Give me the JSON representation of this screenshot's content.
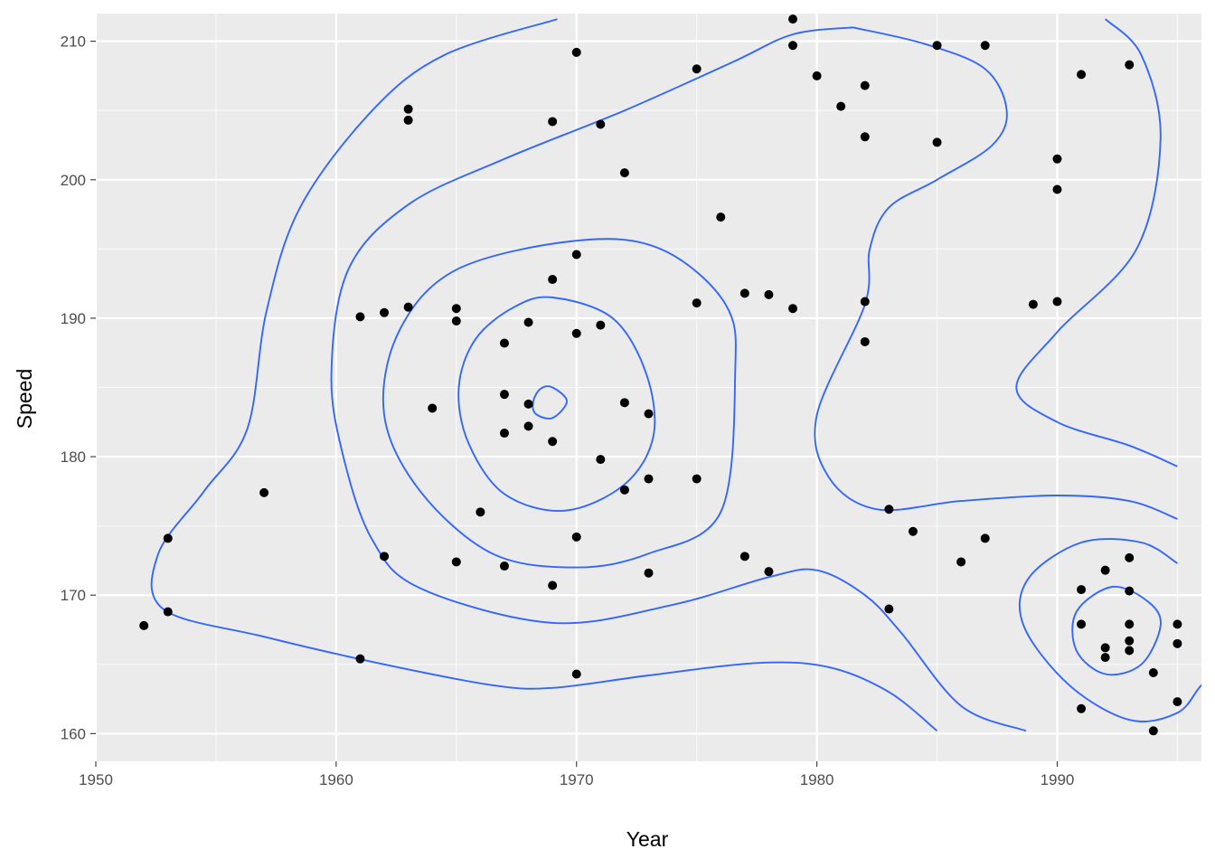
{
  "chart_data": {
    "type": "scatter",
    "title": "",
    "xlabel": "Year",
    "ylabel": "Speed",
    "xlim": [
      1950,
      1996
    ],
    "ylim": [
      158,
      212
    ],
    "x_ticks": [
      1950,
      1960,
      1970,
      1980,
      1990
    ],
    "y_ticks": [
      160,
      170,
      180,
      190,
      200,
      210
    ],
    "x_minor": [
      1955,
      1965,
      1975,
      1985,
      1995
    ],
    "y_minor": [
      165,
      175,
      185,
      195,
      205
    ],
    "grid": true,
    "legend": "none",
    "colors": {
      "panel": "#ebebeb",
      "grid": "#ffffff",
      "points": "#000000",
      "contours": "#3366ff",
      "tick_text": "#4d4d4d",
      "axis_text": "#000000"
    },
    "points": [
      [
        1952,
        167.8
      ],
      [
        1953,
        174.1
      ],
      [
        1953,
        168.8
      ],
      [
        1957,
        177.4
      ],
      [
        1961,
        190.1
      ],
      [
        1961,
        165.4
      ],
      [
        1962,
        190.4
      ],
      [
        1962,
        172.8
      ],
      [
        1963,
        190.8
      ],
      [
        1963,
        205.1
      ],
      [
        1963,
        204.3
      ],
      [
        1964,
        183.5
      ],
      [
        1965,
        190.7
      ],
      [
        1965,
        189.8
      ],
      [
        1965,
        172.4
      ],
      [
        1966,
        176.0
      ],
      [
        1967,
        188.2
      ],
      [
        1967,
        184.5
      ],
      [
        1967,
        181.7
      ],
      [
        1967,
        172.1
      ],
      [
        1968,
        189.7
      ],
      [
        1968,
        183.8
      ],
      [
        1968,
        182.2
      ],
      [
        1969,
        204.2
      ],
      [
        1969,
        192.8
      ],
      [
        1969,
        181.1
      ],
      [
        1969,
        170.7
      ],
      [
        1970,
        209.2
      ],
      [
        1970,
        194.6
      ],
      [
        1970,
        188.9
      ],
      [
        1970,
        174.2
      ],
      [
        1970,
        164.3
      ],
      [
        1971,
        204.0
      ],
      [
        1971,
        189.5
      ],
      [
        1971,
        179.8
      ],
      [
        1972,
        200.5
      ],
      [
        1972,
        183.9
      ],
      [
        1972,
        177.6
      ],
      [
        1973,
        183.1
      ],
      [
        1973,
        178.4
      ],
      [
        1973,
        171.6
      ],
      [
        1975,
        208.0
      ],
      [
        1975,
        191.1
      ],
      [
        1975,
        178.4
      ],
      [
        1976,
        197.3
      ],
      [
        1977,
        191.8
      ],
      [
        1977,
        172.8
      ],
      [
        1978,
        191.7
      ],
      [
        1978,
        171.7
      ],
      [
        1979,
        211.6
      ],
      [
        1979,
        209.7
      ],
      [
        1979,
        190.7
      ],
      [
        1980,
        207.5
      ],
      [
        1981,
        205.3
      ],
      [
        1982,
        206.8
      ],
      [
        1982,
        203.1
      ],
      [
        1982,
        191.2
      ],
      [
        1982,
        188.3
      ],
      [
        1983,
        176.2
      ],
      [
        1983,
        169.0
      ],
      [
        1984,
        174.6
      ],
      [
        1985,
        209.7
      ],
      [
        1985,
        202.7
      ],
      [
        1986,
        172.4
      ],
      [
        1987,
        209.7
      ],
      [
        1987,
        174.1
      ],
      [
        1989,
        191.0
      ],
      [
        1990,
        201.5
      ],
      [
        1990,
        199.3
      ],
      [
        1990,
        191.2
      ],
      [
        1991,
        207.6
      ],
      [
        1991,
        170.4
      ],
      [
        1991,
        167.9
      ],
      [
        1991,
        161.8
      ],
      [
        1992,
        171.8
      ],
      [
        1992,
        166.2
      ],
      [
        1992,
        165.5
      ],
      [
        1993,
        208.3
      ],
      [
        1993,
        172.7
      ],
      [
        1993,
        170.3
      ],
      [
        1993,
        167.9
      ],
      [
        1993,
        166.7
      ],
      [
        1993,
        166.0
      ],
      [
        1994,
        164.4
      ],
      [
        1994,
        160.2
      ],
      [
        1995,
        167.9
      ],
      [
        1995,
        166.5
      ],
      [
        1995,
        162.3
      ]
    ],
    "contours": [
      [
        [
          1969.0,
          185.0
        ],
        [
          1969.6,
          184.0
        ],
        [
          1969.0,
          182.8
        ],
        [
          1968.3,
          183.1
        ],
        [
          1968.2,
          184.0
        ],
        [
          1968.5,
          184.9
        ],
        [
          1969.0,
          185.0
        ]
      ],
      [
        [
          1969.0,
          191.5
        ],
        [
          1971.5,
          190.0
        ],
        [
          1972.9,
          186.0
        ],
        [
          1973.2,
          181.5
        ],
        [
          1972.0,
          178.0
        ],
        [
          1969.5,
          176.1
        ],
        [
          1967.0,
          177.3
        ],
        [
          1965.5,
          181.0
        ],
        [
          1965.1,
          185.0
        ],
        [
          1965.8,
          188.5
        ],
        [
          1967.4,
          190.8
        ],
        [
          1969.0,
          191.5
        ]
      ],
      [
        [
          1970.0,
          195.6
        ],
        [
          1973.5,
          195.0
        ],
        [
          1976.2,
          191.0
        ],
        [
          1976.6,
          186.0
        ],
        [
          1976.0,
          176.0
        ],
        [
          1973.0,
          173.0
        ],
        [
          1970.0,
          172.0
        ],
        [
          1966.5,
          173.0
        ],
        [
          1963.5,
          177.5
        ],
        [
          1962.0,
          183.0
        ],
        [
          1962.6,
          189.0
        ],
        [
          1965.0,
          193.5
        ],
        [
          1970.0,
          195.6
        ]
      ],
      [
        [
          1981.5,
          211.0
        ],
        [
          1979.0,
          210.5
        ],
        [
          1976.5,
          208.5
        ],
        [
          1972.0,
          205.0
        ],
        [
          1967.0,
          201.5
        ],
        [
          1963.0,
          198.2
        ],
        [
          1960.5,
          193.5
        ],
        [
          1959.8,
          186.0
        ],
        [
          1960.3,
          180.0
        ],
        [
          1961.5,
          174.0
        ],
        [
          1963.5,
          170.5
        ],
        [
          1969.0,
          168.0
        ],
        [
          1974.0,
          169.3
        ],
        [
          1978.0,
          171.3
        ],
        [
          1980.0,
          171.8
        ],
        [
          1982.0,
          170.0
        ],
        [
          1983.5,
          167.3
        ],
        [
          1986.0,
          162.0
        ],
        [
          1988.7,
          160.2
        ]
      ],
      [
        [
          1969.2,
          211.6
        ],
        [
          1964.5,
          209.0
        ],
        [
          1961.5,
          205.0
        ],
        [
          1958.5,
          198.0
        ],
        [
          1957.1,
          190.5
        ],
        [
          1956.3,
          182.0
        ],
        [
          1954.5,
          177.5
        ],
        [
          1952.6,
          173.0
        ],
        [
          1952.8,
          169.0
        ],
        [
          1957.0,
          167.0
        ],
        [
          1962.0,
          165.0
        ],
        [
          1966.5,
          163.5
        ],
        [
          1969.0,
          163.3
        ],
        [
          1973.0,
          164.2
        ],
        [
          1977.5,
          165.1
        ],
        [
          1980.5,
          164.8
        ],
        [
          1983.0,
          163.0
        ],
        [
          1985.0,
          160.2
        ]
      ],
      [
        [
          1981.5,
          211.0
        ],
        [
          1984.5,
          209.8
        ],
        [
          1987.0,
          208.0
        ],
        [
          1987.9,
          205.0
        ],
        [
          1987.3,
          202.5
        ],
        [
          1985.0,
          200.0
        ],
        [
          1983.0,
          198.0
        ],
        [
          1982.2,
          195.0
        ],
        [
          1982.0,
          191.0
        ],
        [
          1980.0,
          183.0
        ],
        [
          1980.5,
          178.5
        ],
        [
          1982.5,
          176.2
        ],
        [
          1986.0,
          176.8
        ],
        [
          1990.0,
          177.2
        ],
        [
          1993.0,
          176.8
        ],
        [
          1995.0,
          175.5
        ]
      ],
      [
        [
          1992.0,
          211.6
        ],
        [
          1993.5,
          209.0
        ],
        [
          1994.3,
          203.0
        ],
        [
          1993.3,
          195.0
        ],
        [
          1990.0,
          189.0
        ],
        [
          1988.3,
          185.0
        ],
        [
          1990.0,
          182.5
        ],
        [
          1993.0,
          180.8
        ],
        [
          1995.0,
          179.3
        ]
      ],
      [
        [
          1995.0,
          172.3
        ],
        [
          1993.5,
          173.8
        ],
        [
          1991.0,
          173.8
        ],
        [
          1988.8,
          171.2
        ],
        [
          1988.6,
          167.8
        ],
        [
          1990.5,
          163.5
        ],
        [
          1993.0,
          161.0
        ],
        [
          1995.0,
          161.5
        ],
        [
          1996.0,
          163.5
        ],
        [
          1997.0,
          165.0
        ]
      ],
      [
        [
          1992.3,
          170.6
        ],
        [
          1993.8,
          169.5
        ],
        [
          1994.3,
          167.8
        ],
        [
          1993.5,
          165.0
        ],
        [
          1992.0,
          164.3
        ],
        [
          1990.8,
          166.0
        ],
        [
          1990.8,
          168.8
        ],
        [
          1992.3,
          170.6
        ]
      ]
    ]
  }
}
